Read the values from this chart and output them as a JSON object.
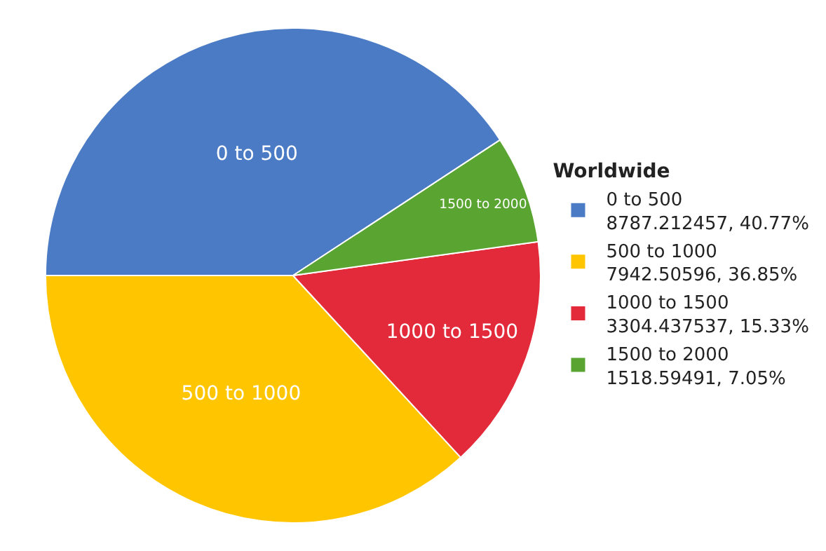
{
  "chart_data": {
    "type": "pie",
    "legend_title": "Worldwide",
    "categories": [
      "0 to 500",
      "500 to 1000",
      "1000 to 1500",
      "1500 to 2000"
    ],
    "values": [
      8787.212457,
      7942.50596,
      3304.437537,
      1518.59491
    ],
    "value_labels": [
      "8787.212457, 40.77%",
      "7942.50596, 36.85%",
      "3304.437537, 15.33%",
      "1518.59491, 7.05%"
    ],
    "colors": [
      "#4a7bc4",
      "#ffc600",
      "#e32a3a",
      "#5aa532"
    ],
    "legend": "right"
  }
}
